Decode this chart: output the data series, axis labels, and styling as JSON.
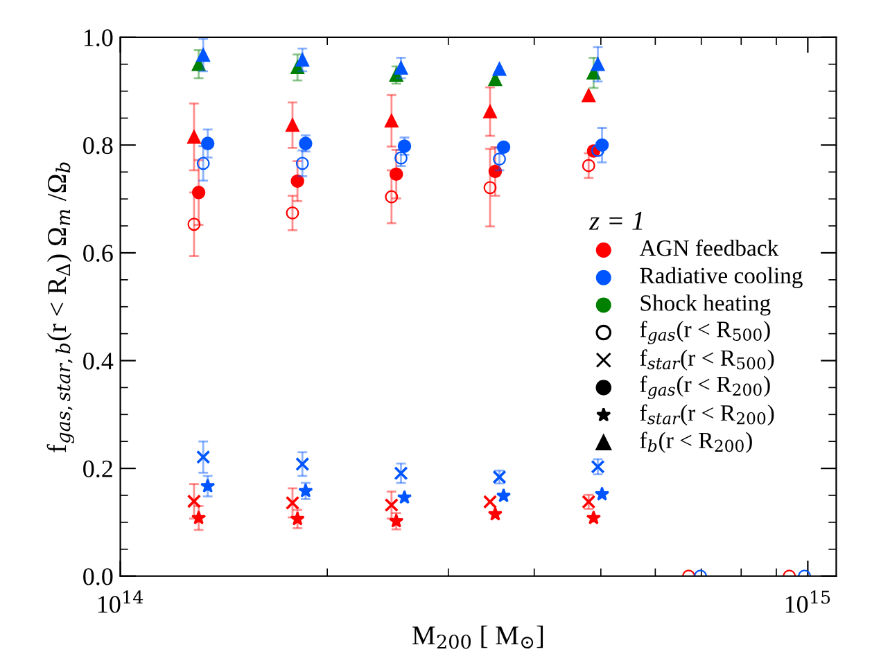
{
  "chart_data": {
    "type": "scatter",
    "xlabel": "M$_{200}$ [ M$_{⊙}$]",
    "ylabel": "f$_{gas,star,b}$(r < R$_{Δ}$) Ω$_{m}$ /Ω$_{b}$",
    "log": "x",
    "xlim": [
      100000000000000.0,
      1100000000000000.0
    ],
    "ylim": [
      0,
      1.0
    ],
    "xticks": [
      {
        "value": 100000000000000.0,
        "label": "10$^{14}$"
      },
      {
        "value": 1000000000000000.0,
        "label": "10$^{15}$"
      }
    ],
    "yticks": [
      {
        "value": 0,
        "label": "0.0"
      },
      {
        "value": 0.2,
        "label": "0.2"
      },
      {
        "value": 0.4,
        "label": "0.4"
      },
      {
        "value": 0.6,
        "label": "0.6"
      },
      {
        "value": 0.8,
        "label": "0.8"
      },
      {
        "value": 1.0,
        "label": "1.0"
      }
    ],
    "grid": false,
    "legend_title": "z = 1",
    "annotations": [
      "AGN feedback",
      "Radiative cooling",
      "Shock heating",
      "f$_{gas}$(r < R$_{500}$)",
      "f$_{star}$(r < R$_{500}$)",
      "f$_{gas}$(r < R$_{200}$)",
      "f$_{star}$(r < R$_{200}$)",
      "f$_{b}$(r < R$_{200}$)"
    ],
    "series": [
      {
        "color": "#ff0000",
        "marker": "circle",
        "x": [
          128000000000000.0,
          178000000000000.0,
          248000000000000.0,
          345000000000000.0,
          480000000000000.0,
          671000000000000.0,
          940000000000000.0
        ],
        "values": [
          0.653,
          0.674,
          0.704,
          0.721,
          0.762,
          0,
          0
        ],
        "errors": [
          0.059,
          0.032,
          0.049,
          0.072,
          0.023,
          null,
          null
        ]
      },
      {
        "color": "#0055ff",
        "marker": "circle",
        "x": [
          132000000000000.0,
          184000000000000.0,
          256000000000000.0,
          356000000000000.0,
          495000000000000.0,
          698000000000000.0,
          989000000000000.0
        ],
        "values": [
          0.766,
          0.766,
          0.776,
          0.774,
          0.79,
          0,
          0
        ],
        "errors": [
          0.032,
          0.024,
          0.015,
          0.021,
          null,
          null,
          null
        ]
      },
      {
        "color": "#ff0000",
        "marker": "cross",
        "x": [
          128000000000000.0,
          178000000000000.0,
          248000000000000.0,
          345000000000000.0,
          480000000000000.0
        ],
        "values": [
          0.139,
          0.136,
          0.132,
          0.138,
          0.138
        ],
        "errors": [
          0.032,
          0.027,
          0.025,
          null,
          0.013
        ]
      },
      {
        "color": "#0055ff",
        "marker": "cross",
        "x": [
          132000000000000.0,
          184000000000000.0,
          256000000000000.0,
          356000000000000.0,
          495000000000000.0
        ],
        "values": [
          0.221,
          0.208,
          0.191,
          0.184,
          0.203
        ],
        "errors": [
          0.029,
          0.022,
          0.018,
          0.012,
          0.014
        ]
      },
      {
        "color": "#ff0000",
        "marker": "circle",
        "x": [
          130000000000000.0,
          181000000000000.0,
          252000000000000.0,
          351000000000000.0,
          488000000000000.0
        ],
        "values": [
          0.712,
          0.733,
          0.746,
          0.751,
          0.789
        ],
        "errors": [
          0.06,
          0.037,
          0.045,
          0.045,
          null
        ]
      },
      {
        "color": "#0055ff",
        "marker": "circle",
        "x": [
          134000000000000.0,
          186000000000000.0,
          259000000000000.0,
          361000000000000.0,
          502000000000000.0
        ],
        "values": [
          0.803,
          0.803,
          0.798,
          0.796,
          0.8
        ],
        "errors": [
          0.026,
          0.015,
          0.016,
          null,
          0.032
        ]
      },
      {
        "color": "#ff0000",
        "marker": "star",
        "x": [
          130000000000000.0,
          181000000000000.0,
          252000000000000.0,
          351000000000000.0,
          488000000000000.0
        ],
        "values": [
          0.108,
          0.106,
          0.102,
          0.115,
          0.108
        ],
        "errors": [
          0.022,
          0.017,
          0.015,
          null,
          null
        ]
      },
      {
        "color": "#0055ff",
        "marker": "star",
        "x": [
          134000000000000.0,
          186000000000000.0,
          259000000000000.0,
          361000000000000.0,
          502000000000000.0
        ],
        "values": [
          0.167,
          0.158,
          0.146,
          0.149,
          0.152
        ],
        "errors": [
          0.019,
          0.015,
          null,
          null,
          null
        ]
      },
      {
        "color": "#ff0000",
        "marker": "triangle",
        "x": [
          128000000000000.0,
          178000000000000.0,
          248000000000000.0,
          345000000000000.0,
          480000000000000.0
        ],
        "values": [
          0.815,
          0.837,
          0.845,
          0.862,
          0.892
        ],
        "errors": [
          0.062,
          0.042,
          0.048,
          0.045,
          null
        ]
      },
      {
        "color": "#008000",
        "marker": "triangle",
        "x": [
          130000000000000.0,
          181000000000000.0,
          252000000000000.0,
          351000000000000.0,
          488000000000000.0
        ],
        "values": [
          0.95,
          0.944,
          0.93,
          0.922,
          0.934
        ],
        "errors": [
          0.026,
          0.024,
          0.016,
          null,
          0.028
        ]
      },
      {
        "color": "#0055ff",
        "marker": "triangle",
        "x": [
          132000000000000.0,
          184000000000000.0,
          256000000000000.0,
          356000000000000.0,
          495000000000000.0
        ],
        "values": [
          0.967,
          0.958,
          0.943,
          0.941,
          0.95
        ],
        "errors": [
          0.03,
          0.021,
          0.019,
          null,
          0.032
        ]
      }
    ]
  }
}
